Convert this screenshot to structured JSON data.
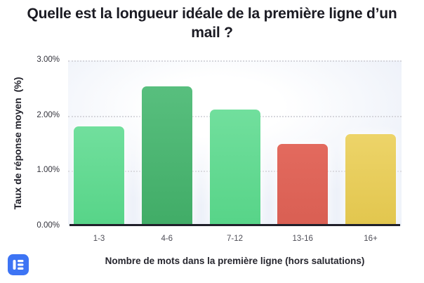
{
  "title": "Quelle est la longueur idéale de la première ligne d’un mail ?",
  "chart_data": {
    "type": "bar",
    "title": "Quelle est la longueur idéale de la première ligne d’un mail ?",
    "categories": [
      "1-3",
      "4-6",
      "7-12",
      "13-16",
      "16+"
    ],
    "values": [
      1.79,
      2.52,
      2.1,
      1.48,
      1.65
    ],
    "xlabel": "Nombre de mots dans la première ligne (hors salutations)",
    "ylabel": "Taux de réponse moyen  (%)",
    "ylim": [
      0,
      3
    ],
    "yticks": [
      "3.00%",
      "2.00%",
      "1.00%",
      "0.00%"
    ],
    "grid": "horizontal-dotted",
    "legend": "none",
    "bar_colors": [
      {
        "top": "#71DF9D",
        "bottom": "#57D488"
      },
      {
        "top": "#58BF7E",
        "bottom": "#41AC67"
      },
      {
        "top": "#71DF9D",
        "bottom": "#57D488"
      },
      {
        "top": "#E36A5E",
        "bottom": "#D95F53"
      },
      {
        "top": "#EDD469",
        "bottom": "#E2C64E"
      }
    ],
    "axis_line_color": "#20202a",
    "gridline_color": "#d6d6dc"
  },
  "logo": {
    "name": "lemlist",
    "color": "#3D74F4"
  }
}
